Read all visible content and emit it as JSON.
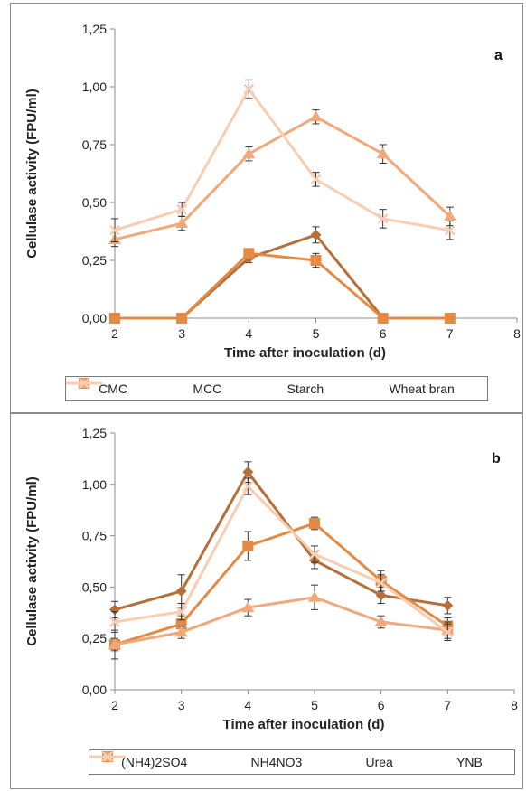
{
  "chart_data": [
    {
      "type": "line",
      "panel_label": "a",
      "xlabel": "Time after inoculation (d)",
      "ylabel": "Cellulase activity (FPU/ml)",
      "xlim": [
        2,
        8
      ],
      "ylim": [
        0,
        1.25
      ],
      "xticks": [
        "2",
        "3",
        "4",
        "5",
        "6",
        "7",
        "8"
      ],
      "yticks": [
        "0,00",
        "0,25",
        "0,50",
        "0,75",
        "1,00",
        "1,25"
      ],
      "grid": false,
      "legend_position": "bottom",
      "x": [
        2,
        3,
        4,
        5,
        6,
        7
      ],
      "series": [
        {
          "name": "CMC",
          "marker": "diamond",
          "color": "#b5703a",
          "values": [
            0,
            0,
            0.26,
            0.36,
            0,
            0
          ],
          "errors": [
            0,
            0,
            0.02,
            0.035,
            0,
            0
          ]
        },
        {
          "name": "MCC",
          "marker": "square",
          "color": "#e48a44",
          "values": [
            0,
            0,
            0.28,
            0.25,
            0,
            0
          ],
          "errors": [
            0,
            0,
            0.02,
            0.03,
            0,
            0
          ]
        },
        {
          "name": "Starch",
          "marker": "triangle",
          "color": "#f0a97a",
          "values": [
            0.34,
            0.41,
            0.71,
            0.87,
            0.71,
            0.44
          ],
          "errors": [
            0.03,
            0.03,
            0.03,
            0.03,
            0.04,
            0.04
          ]
        },
        {
          "name": "Wheat bran",
          "marker": "x",
          "color": "#f7cdb3",
          "values": [
            0.38,
            0.47,
            0.99,
            0.6,
            0.43,
            0.38
          ],
          "errors": [
            0.05,
            0.03,
            0.04,
            0.03,
            0.04,
            0.04
          ]
        }
      ]
    },
    {
      "type": "line",
      "panel_label": "b",
      "xlabel": "Time after inoculation (d)",
      "ylabel": "Cellulase activity (FPU/ml)",
      "xlim": [
        2,
        8
      ],
      "ylim": [
        0,
        1.25
      ],
      "xticks": [
        "2",
        "3",
        "4",
        "5",
        "6",
        "7",
        "8"
      ],
      "yticks": [
        "0,00",
        "0,25",
        "0,50",
        "0,75",
        "1,00",
        "1,25"
      ],
      "grid": false,
      "legend_position": "bottom",
      "x": [
        2,
        3,
        4,
        5,
        6,
        7
      ],
      "series": [
        {
          "name": "(NH4)2SO4",
          "marker": "diamond",
          "color": "#b5703a",
          "values": [
            0.39,
            0.48,
            1.06,
            0.63,
            0.46,
            0.41
          ],
          "errors": [
            0.04,
            0.08,
            0.05,
            0.04,
            0.04,
            0.04
          ]
        },
        {
          "name": "NH4NO3",
          "marker": "square",
          "color": "#e48a44",
          "values": [
            0.22,
            0.32,
            0.7,
            0.81,
            0.53,
            0.31
          ],
          "errors": [
            0.03,
            0.04,
            0.07,
            0.03,
            0.05,
            0.04
          ]
        },
        {
          "name": "Urea",
          "marker": "triangle",
          "color": "#f0a97a",
          "values": [
            0.22,
            0.28,
            0.4,
            0.45,
            0.33,
            0.29
          ],
          "errors": [
            0.07,
            0.03,
            0.04,
            0.06,
            0.03,
            0.04
          ]
        },
        {
          "name": "YNB",
          "marker": "x",
          "color": "#f7cdb3",
          "values": [
            0.33,
            0.38,
            0.99,
            0.66,
            0.52,
            0.28
          ],
          "errors": [
            0.05,
            0.04,
            0.04,
            0.04,
            0.04,
            0.04
          ]
        }
      ]
    }
  ]
}
